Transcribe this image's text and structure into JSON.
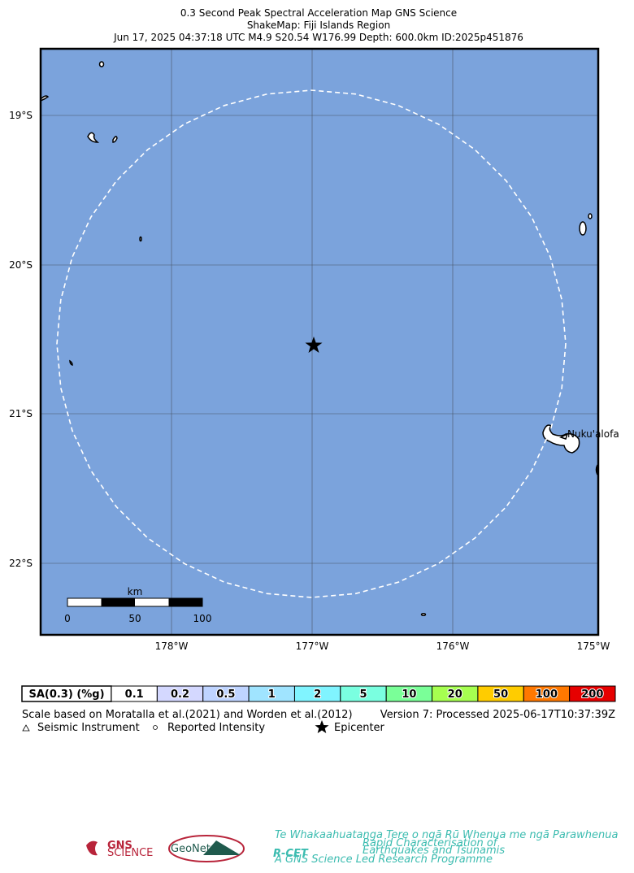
{
  "header": {
    "lines": [
      "0.3 Second Peak Spectral Acceleration Map GNS Science",
      "ShakeMap: Fiji Islands Region",
      "Jun 17, 2025 04:37:18 UTC M4.9 S20.54 W176.99 Depth: 600.0km ID:2025p451876"
    ]
  },
  "map": {
    "lat_labels": [
      "19°S",
      "20°S",
      "21°S",
      "22°S"
    ],
    "lon_labels": [
      "178°W",
      "177°W",
      "176°W",
      "175°W"
    ],
    "scale": {
      "unit": "km",
      "labels": [
        "0",
        "50",
        "100"
      ]
    },
    "place": "Nuku'alofa"
  },
  "legend": {
    "scale_title": "SA(0.3) (%g)",
    "levels": [
      {
        "label": "0.1",
        "color": "#ffffff"
      },
      {
        "label": "0.2",
        "color": "#d4d8ff"
      },
      {
        "label": "0.5",
        "color": "#bfd4ff"
      },
      {
        "label": "1",
        "color": "#a0e4ff"
      },
      {
        "label": "2",
        "color": "#80f4ff"
      },
      {
        "label": "5",
        "color": "#7affe0"
      },
      {
        "label": "10",
        "color": "#7aff98"
      },
      {
        "label": "20",
        "color": "#a6ff50"
      },
      {
        "label": "50",
        "color": "#ffcc00"
      },
      {
        "label": "100",
        "color": "#ff7800"
      },
      {
        "label": "200",
        "color": "#e60000"
      }
    ],
    "note": "Scale based on Moratalla et al.(2021) and Worden et al.(2012)",
    "version": "Version 7: Processed 2025-06-17T10:37:39Z",
    "symbols": [
      "Seismic Instrument",
      "Reported Intensity",
      "Epicenter"
    ]
  },
  "logos": {
    "gns": "GNS",
    "gns_sub": "SCIENCE",
    "geonet": "GeoNet",
    "rcet": "R-CET",
    "rcet_top": "Te Whakaahuatanga Tere o ngā Rū Whenua me ngā Parawhenua",
    "rcet_side1": "Rapid Characterisation of",
    "rcet_side2": "Earthquakes and Tsunamis",
    "rcet_bottom": "A GNS Science Led Research Programme"
  }
}
